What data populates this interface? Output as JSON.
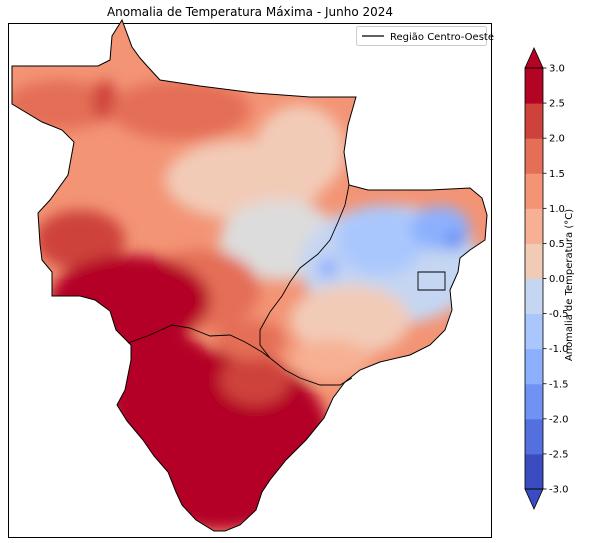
{
  "chart_data": {
    "type": "heatmap",
    "title": "Anomalia de Temperatura Máxima - Junho 2024",
    "legend": {
      "label": "Região Centro-Oeste",
      "placement": "top-right"
    },
    "colorbar": {
      "label": "Anomalia de Temperatura (°C)",
      "min": -3.0,
      "max": 3.0,
      "step": 0.5,
      "extend": "both",
      "ticks": [
        "-3.0",
        "-2.5",
        "-2.0",
        "-1.5",
        "-1.0",
        "-0.5",
        "0.0",
        "0.5",
        "1.0",
        "1.5",
        "2.0",
        "2.5",
        "3.0"
      ],
      "colors": [
        "#3b4cc0",
        "#5470de",
        "#6f92f3",
        "#8db0fe",
        "#aac7fd",
        "#c5d6f2",
        "#dddcdc",
        "#f2cbb7",
        "#f7b093",
        "#f39475",
        "#e46e56",
        "#cd423b",
        "#b40426"
      ],
      "under_color": "#3b4cc0",
      "over_color": "#b40426"
    },
    "map": {
      "region": "Região Centro-Oeste",
      "pattern": "warm anomalies (2.5 to >3.0 °C) in the south-west, cooling to 0.0 to 1.5 °C in the centre and north, and slightly negative anomalies (-0.5 to -1.5 °C) in the east"
    }
  }
}
